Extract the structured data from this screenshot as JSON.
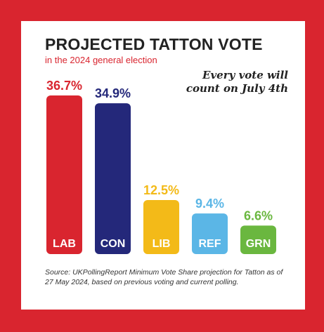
{
  "title": "PROJECTED TATTON VOTE",
  "subtitle": "in the 2024 general election",
  "note_lines": [
    "Every vote will",
    "count on July 4th"
  ],
  "source": "Source: UKPollingReport Minimum Vote Share projection for Tatton as of 27 May 2024, based on previous voting and current polling.",
  "chart_data": {
    "type": "bar",
    "categories": [
      "LAB",
      "CON",
      "LIB",
      "REF",
      "GRN"
    ],
    "values": [
      36.7,
      34.9,
      12.5,
      9.4,
      6.6
    ],
    "value_labels": [
      "36.7%",
      "34.9%",
      "12.5%",
      "9.4%",
      "6.6%"
    ],
    "colors": [
      "#d9252f",
      "#24287a",
      "#f3ba18",
      "#5bb6e6",
      "#6ab73f"
    ],
    "title": "PROJECTED TATTON VOTE",
    "ylim": [
      0,
      36.7
    ]
  }
}
